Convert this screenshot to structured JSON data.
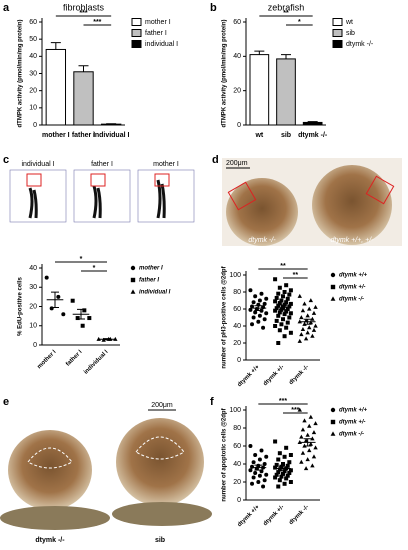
{
  "chart_data": [
    {
      "type": "bar",
      "panel_label": "a",
      "title": "fibroblasts",
      "y_label": "dTMPK activity (pmol/min/mg protein)",
      "categories": [
        "mother I",
        "father I",
        "individual I"
      ],
      "values": [
        44,
        31,
        0.5
      ],
      "errors": [
        4,
        3.5,
        0.2
      ],
      "colors": [
        "#ffffff",
        "#c0c0c0",
        "#000000"
      ],
      "ylim": [
        0,
        60
      ],
      "yticks": [
        0,
        10,
        20,
        30,
        40,
        50,
        60
      ],
      "legend": "right",
      "significance": [
        "***",
        "***"
      ]
    },
    {
      "type": "bar",
      "panel_label": "b",
      "title": "zebrafish",
      "y_label": "dTMPK activity (pmol/min/mg protein)",
      "categories": [
        "wt",
        "sib",
        "dtymk -/-"
      ],
      "values": [
        41,
        38.5,
        1.5
      ],
      "errors": [
        2,
        2.5,
        0.5
      ],
      "colors": [
        "#ffffff",
        "#c0c0c0",
        "#000000"
      ],
      "ylim": [
        0,
        60
      ],
      "yticks": [
        0,
        20,
        40,
        60
      ],
      "legend": "right",
      "significance": [
        "**",
        "*"
      ]
    },
    {
      "type": "strip",
      "y_label": "% EdU-positive cells",
      "ylim": [
        0,
        40
      ],
      "yticks": [
        0,
        10,
        20,
        30,
        40
      ],
      "legend": "right",
      "series": [
        {
          "name": "mother I",
          "marker": "circle",
          "values": [
            35,
            25,
            19,
            16
          ],
          "mean": 23.5,
          "sem": 4
        },
        {
          "name": "father I",
          "marker": "square",
          "values": [
            23,
            18,
            14,
            14,
            10
          ],
          "mean": 16,
          "sem": 2.5
        },
        {
          "name": "individual I",
          "marker": "triangle",
          "values": [
            3,
            3,
            2.5,
            3,
            3
          ],
          "mean": 3,
          "sem": 0.3
        }
      ],
      "significance": [
        "*",
        "*"
      ]
    },
    {
      "type": "strip",
      "y_label": "number of pH3-positive cells @2dpf",
      "ylim": [
        0,
        100
      ],
      "yticks": [
        0,
        20,
        40,
        60,
        80,
        100
      ],
      "legend": "right",
      "series": [
        {
          "name": "dtymk +/+",
          "marker": "circle",
          "values": [
            82,
            78,
            75,
            72,
            70,
            68,
            66,
            65,
            63,
            62,
            60,
            59,
            58,
            56,
            55,
            52,
            50,
            48,
            45,
            42,
            38
          ],
          "mean": 61,
          "sem": 2.8
        },
        {
          "name": "dtymk +/-",
          "marker": "square",
          "values": [
            95,
            88,
            85,
            82,
            80,
            78,
            77,
            75,
            73,
            72,
            70,
            69,
            68,
            67,
            66,
            65,
            64,
            63,
            62,
            61,
            60,
            59,
            58,
            57,
            56,
            55,
            54,
            52,
            50,
            48,
            46,
            44,
            42,
            40,
            38,
            35,
            32,
            28,
            20
          ],
          "mean": 62,
          "sem": 2.7
        },
        {
          "name": "dtymk -/-",
          "marker": "triangle",
          "values": [
            75,
            70,
            66,
            62,
            60,
            58,
            55,
            52,
            50,
            48,
            46,
            45,
            44,
            42,
            40,
            38,
            36,
            35,
            32,
            30,
            28,
            25,
            22
          ],
          "mean": 45,
          "sem": 3
        }
      ],
      "significance": [
        "**",
        "**"
      ]
    },
    {
      "type": "strip",
      "panel_label": "f",
      "y_label": "number of apoptotic cells @2dpf",
      "ylim": [
        0,
        100
      ],
      "yticks": [
        0,
        20,
        40,
        60,
        80,
        100
      ],
      "legend": "right",
      "series": [
        {
          "name": "dtymk +/+",
          "marker": "circle",
          "values": [
            60,
            55,
            50,
            48,
            45,
            42,
            40,
            38,
            37,
            36,
            35,
            33,
            32,
            30,
            28,
            27,
            25,
            22,
            20,
            18,
            15
          ],
          "mean": 36,
          "sem": 2.8
        },
        {
          "name": "dtymk +/-",
          "marker": "square",
          "values": [
            65,
            58,
            52,
            50,
            48,
            45,
            42,
            40,
            39,
            38,
            37,
            36,
            35,
            34,
            33,
            32,
            31,
            30,
            29,
            28,
            27,
            26,
            25,
            24,
            22,
            20,
            18,
            15
          ],
          "mean": 35,
          "sem": 2
        },
        {
          "name": "dtymk -/-",
          "marker": "triangle",
          "values": [
            100,
            92,
            88,
            85,
            82,
            78,
            75,
            72,
            70,
            68,
            66,
            64,
            62,
            60,
            58,
            55,
            52,
            48,
            45,
            42,
            38,
            35
          ],
          "mean": 64,
          "sem": 4
        }
      ],
      "significance": [
        "***",
        "***"
      ]
    }
  ],
  "images": {
    "flow": {
      "panel_label": "c",
      "labels": [
        "individual I",
        "father I",
        "mother I"
      ]
    },
    "heads_d": {
      "panel_label": "d",
      "scale": "200μm",
      "labels": [
        "dtymk -/-",
        "dtymk +/+, +/-"
      ]
    },
    "heads_e": {
      "panel_label": "e",
      "scale": "200μm",
      "labels": [
        "dtymk -/-",
        "sib"
      ]
    }
  }
}
